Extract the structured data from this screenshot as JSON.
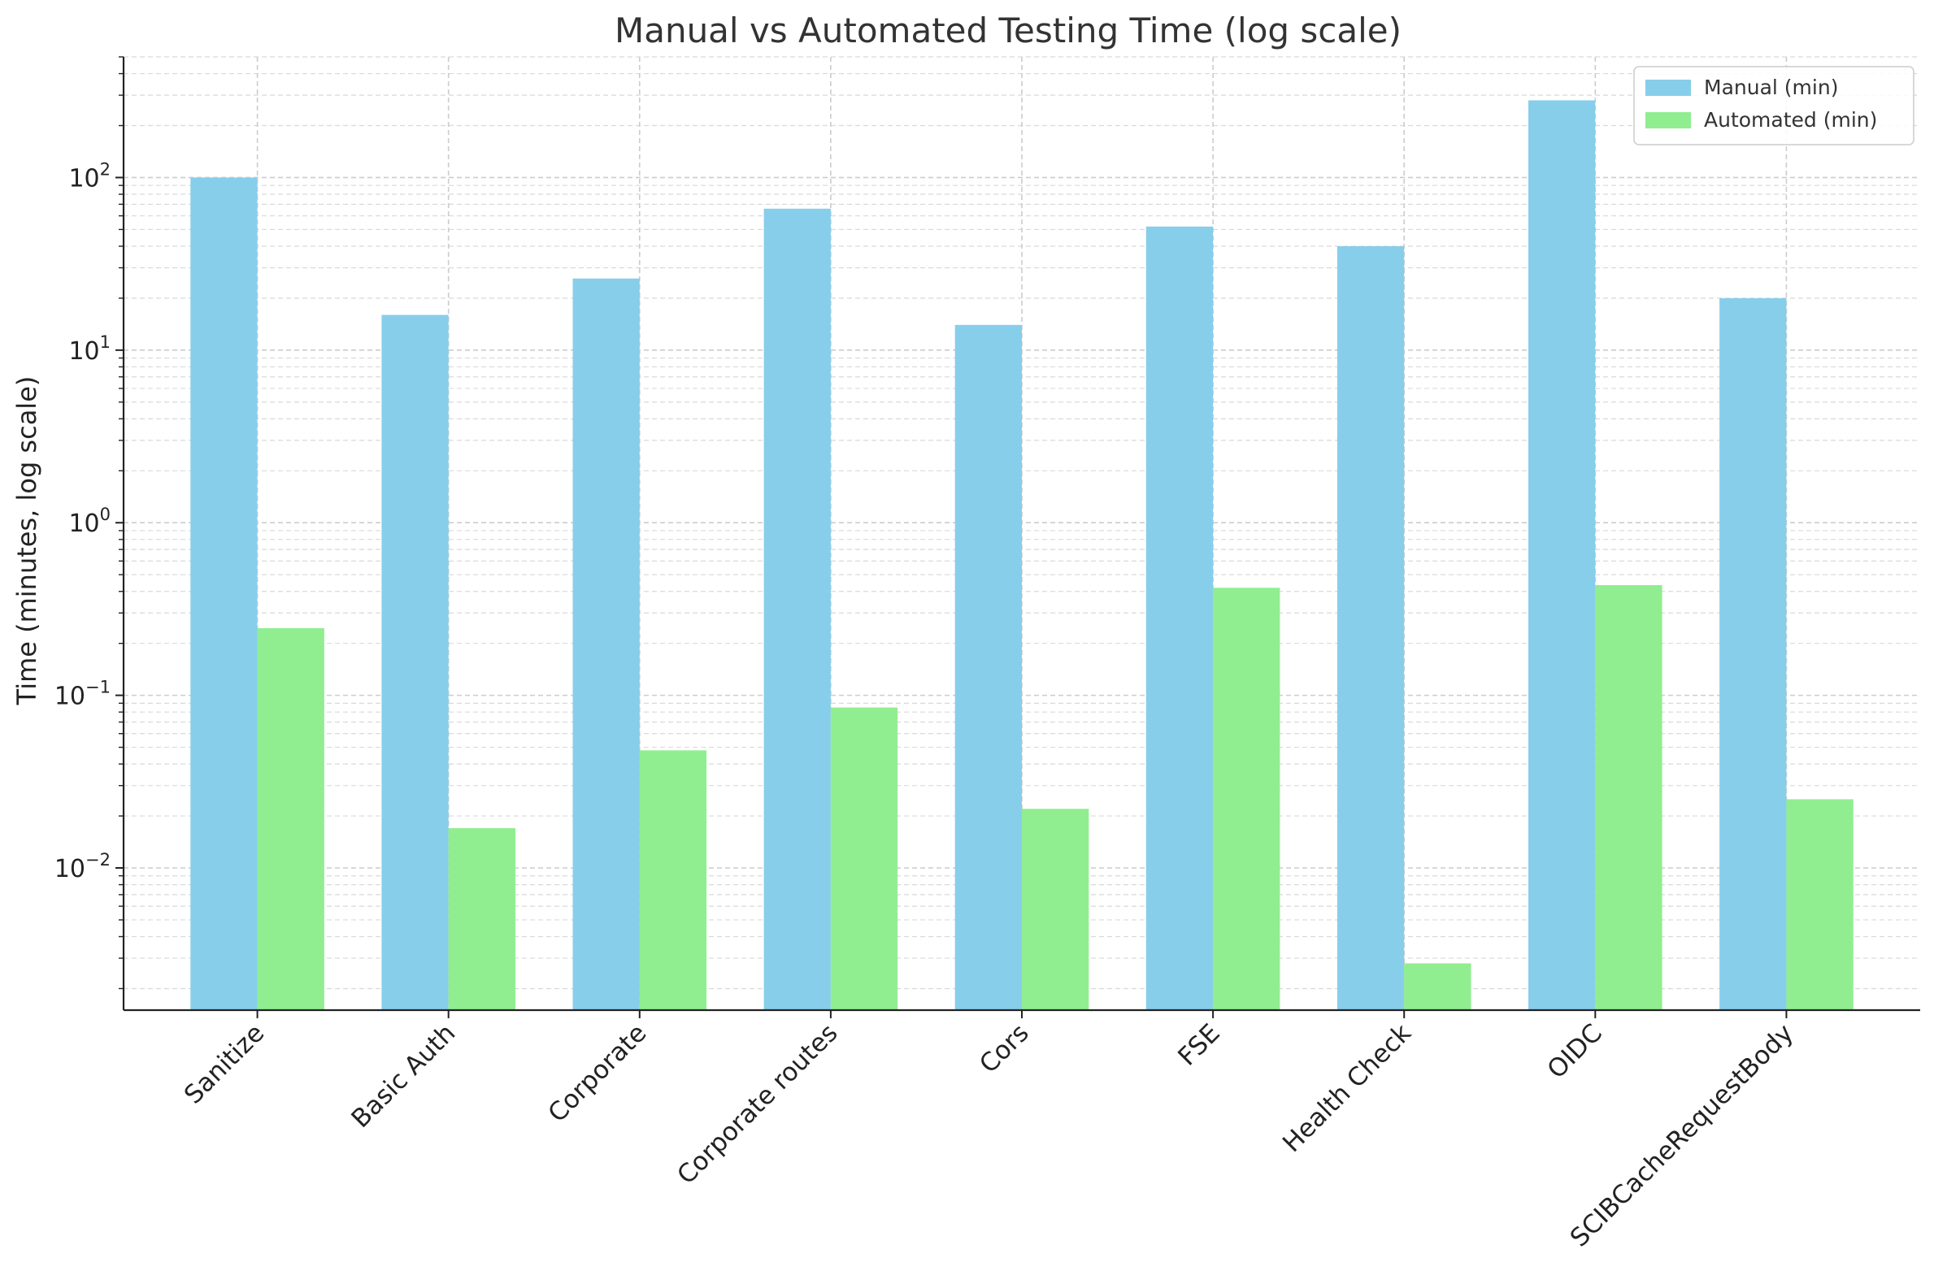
{
  "chart_data": {
    "type": "bar",
    "title": "Manual vs Automated Testing Time (log scale)",
    "xlabel": "",
    "ylabel": "Time (minutes, log scale)",
    "yscale": "log",
    "ylim": [
      0.0015,
      500
    ],
    "grid": "both major and minor, dashed",
    "legend": "top-right",
    "categories": [
      "Sanitize",
      "Basic Auth",
      "Corporate",
      "Corporate routes",
      "Cors",
      "FSE",
      "Health Check",
      "OIDC",
      "SCIBCacheRequestBody"
    ],
    "series": [
      {
        "name": "Manual (min)",
        "color": "#87CEEB",
        "values": [
          100,
          16,
          26,
          66,
          14,
          52,
          40,
          280,
          20
        ]
      },
      {
        "name": "Automated (min)",
        "color": "#90EE90",
        "values": [
          0.245,
          0.017,
          0.048,
          0.085,
          0.022,
          0.42,
          0.0028,
          0.435,
          0.025
        ]
      }
    ],
    "yticks": [
      {
        "value": 0.01,
        "base": "10",
        "exp": "−2"
      },
      {
        "value": 0.1,
        "base": "10",
        "exp": "−1"
      },
      {
        "value": 1,
        "base": "10",
        "exp": "0"
      },
      {
        "value": 10,
        "base": "10",
        "exp": "1"
      },
      {
        "value": 100,
        "base": "10",
        "exp": "2"
      }
    ]
  }
}
